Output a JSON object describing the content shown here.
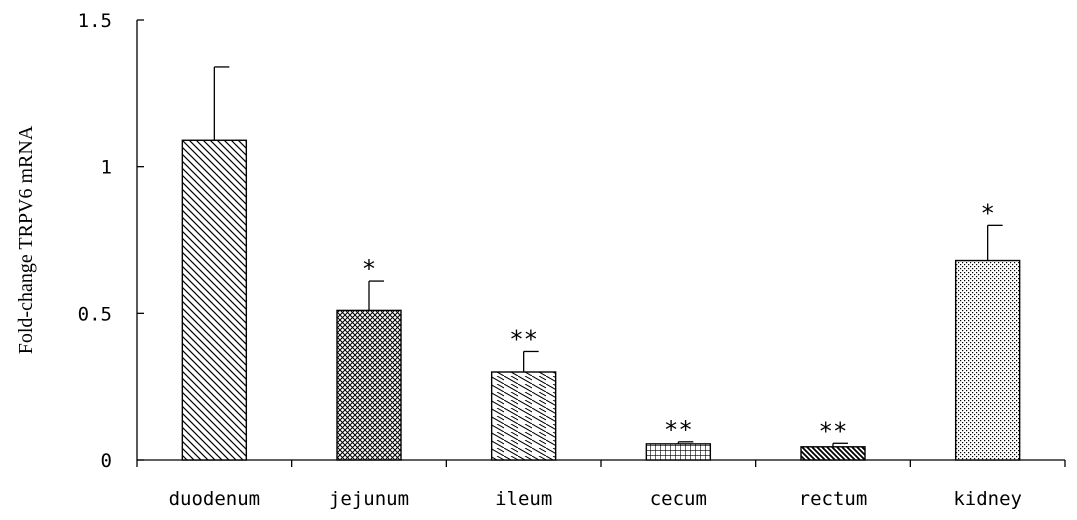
{
  "chart_data": {
    "type": "bar",
    "title": "",
    "xlabel": "",
    "ylabel": "Fold-change TRPV6 mRNA",
    "ylim": [
      0,
      1.5
    ],
    "yticks": [
      {
        "value": 0,
        "label": "0"
      },
      {
        "value": 0.5,
        "label": "0.5"
      },
      {
        "value": 1,
        "label": "1"
      },
      {
        "value": 1.5,
        "label": "1.5"
      }
    ],
    "categories": [
      "duodenum",
      "jejunum",
      "ileum",
      "cecum",
      "rectum",
      "kidney"
    ],
    "values": [
      1.09,
      0.51,
      0.3,
      0.055,
      0.045,
      0.68
    ],
    "errors": [
      0.25,
      0.1,
      0.07,
      0.007,
      0.012,
      0.12
    ],
    "significance": [
      "",
      "*",
      "**",
      "**",
      "**",
      "*"
    ],
    "patterns": [
      "diag-dense",
      "crosshatch",
      "diag-sparse",
      "grid",
      "diag-bold",
      "dots"
    ],
    "grid": false,
    "legend": "none"
  }
}
